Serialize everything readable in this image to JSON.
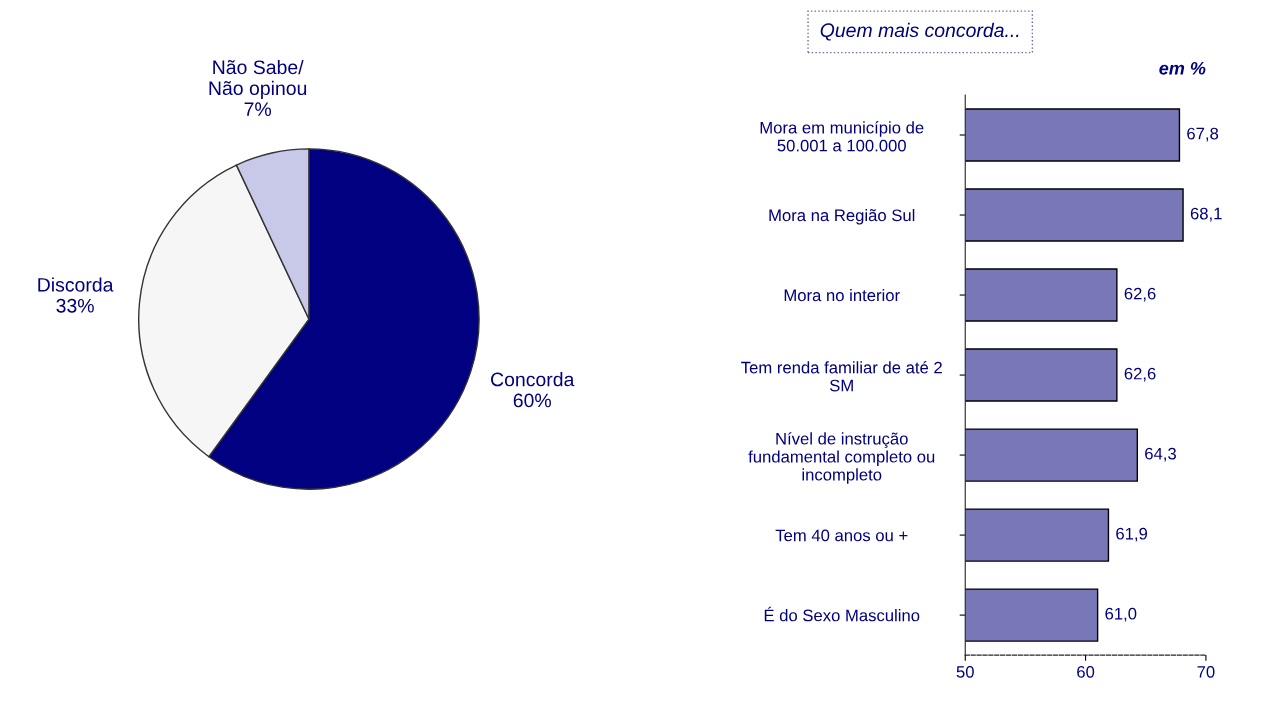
{
  "chart_data": [
    {
      "type": "pie",
      "categories": [
        "Concorda",
        "Discorda",
        "Não Sabe/\nNão opinou"
      ],
      "values": [
        60,
        33,
        7
      ],
      "value_labels": [
        "60%",
        "33%",
        "7%"
      ],
      "colors": [
        "#000080",
        "#f6f6f6",
        "#c8c8e8"
      ]
    },
    {
      "type": "bar",
      "orientation": "horizontal",
      "title": "Quem mais concorda...",
      "subtitle": "em %",
      "categories": [
        "Mora em município de\n50.001 a 100.000",
        "Mora na Região Sul",
        "Mora no interior",
        "Tem renda familiar de até 2\nSM",
        "Nível de instrução\nfundamental completo ou\nincompleto",
        "Tem 40 anos ou +",
        "É do Sexo Masculino"
      ],
      "values": [
        67.8,
        68.1,
        62.6,
        62.6,
        64.3,
        61.9,
        61.0
      ],
      "value_labels": [
        "67,8",
        "68,1",
        "62,6",
        "62,6",
        "64,3",
        "61,9",
        "61,0"
      ],
      "color": "#7878b8",
      "xlim": [
        50,
        70
      ],
      "xticks": [
        50,
        60,
        70
      ]
    }
  ]
}
